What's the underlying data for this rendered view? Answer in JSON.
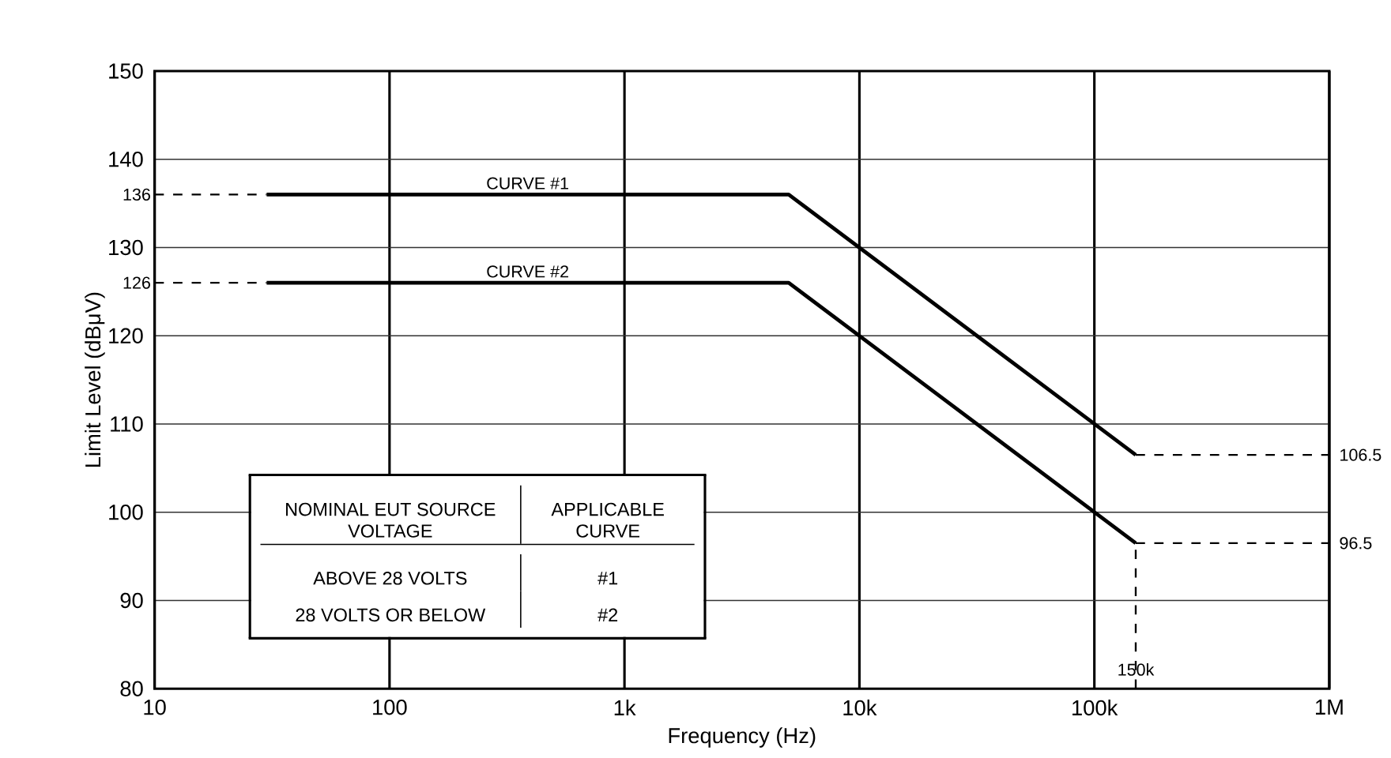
{
  "chart_data": {
    "type": "line",
    "xlabel": "Frequency (Hz)",
    "ylabel": "Limit Level (dBμV)",
    "log": "x",
    "grid": true,
    "xlim": [
      10,
      1000000
    ],
    "ylim": [
      80,
      150
    ],
    "xticks": [
      10,
      100,
      {
        "value": 1000,
        "label": "1k"
      },
      {
        "value": 10000,
        "label": "10k"
      },
      {
        "value": 100000,
        "label": "100k"
      },
      {
        "value": 1000000,
        "label": "1M"
      }
    ],
    "yticks": [
      80,
      90,
      100,
      110,
      120,
      130,
      140,
      150
    ],
    "series": [
      {
        "name": "CURVE #1",
        "color": "#000000",
        "x": [
          30,
          5000,
          150000
        ],
        "values": [
          136,
          136,
          106.5
        ]
      },
      {
        "name": "CURVE #2",
        "color": "#000000",
        "x": [
          30,
          5000,
          150000
        ],
        "values": [
          126,
          126,
          96.5
        ]
      }
    ],
    "ref_lines": [
      {
        "axis": "y",
        "value": 136,
        "label": "136",
        "line_style": "dashed"
      },
      {
        "axis": "y",
        "value": 126,
        "label": "126",
        "line_style": "dashed"
      },
      {
        "axis": "y",
        "value": 106.5,
        "label": "106.5",
        "line_style": "dashed"
      },
      {
        "axis": "y",
        "value": 96.5,
        "label": "96.5",
        "line_style": "dashed"
      },
      {
        "axis": "x",
        "value": 150000,
        "label": "150k",
        "line_style": "dashed"
      }
    ],
    "annotations": [
      "NOMINAL EUT SOURCE VOLTAGE",
      "APPLICABLE CURVE",
      "ABOVE 28 VOLTS",
      "#1",
      "28 VOLTS OR BELOW",
      "#2"
    ]
  }
}
